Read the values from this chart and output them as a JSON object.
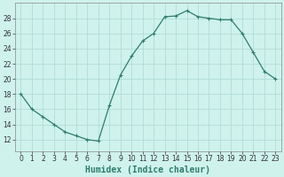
{
  "x": [
    0,
    1,
    2,
    3,
    4,
    5,
    6,
    7,
    8,
    9,
    10,
    11,
    12,
    13,
    14,
    15,
    16,
    17,
    18,
    19,
    20,
    21,
    22,
    23
  ],
  "y": [
    18,
    16,
    15,
    14,
    13,
    12.5,
    12,
    11.8,
    16.5,
    20.5,
    23,
    25,
    26,
    28.2,
    28.3,
    29,
    28.2,
    28,
    27.8,
    27.8,
    26,
    23.5,
    21,
    20
  ],
  "line_color": "#2e7d6e",
  "marker": "+",
  "marker_size": 3.5,
  "marker_lw": 0.8,
  "bg_color": "#cff2ec",
  "grid_color": "#b0ddd6",
  "xlim": [
    -0.5,
    23.5
  ],
  "ylim": [
    10.5,
    30
  ],
  "yticks": [
    12,
    14,
    16,
    18,
    20,
    22,
    24,
    26,
    28
  ],
  "xticks": [
    0,
    1,
    2,
    3,
    4,
    5,
    6,
    7,
    8,
    9,
    10,
    11,
    12,
    13,
    14,
    15,
    16,
    17,
    18,
    19,
    20,
    21,
    22,
    23
  ],
  "xlabel": "Humidex (Indice chaleur)",
  "xlabel_fontsize": 7,
  "tick_fontsize": 5.5,
  "line_width": 0.9
}
